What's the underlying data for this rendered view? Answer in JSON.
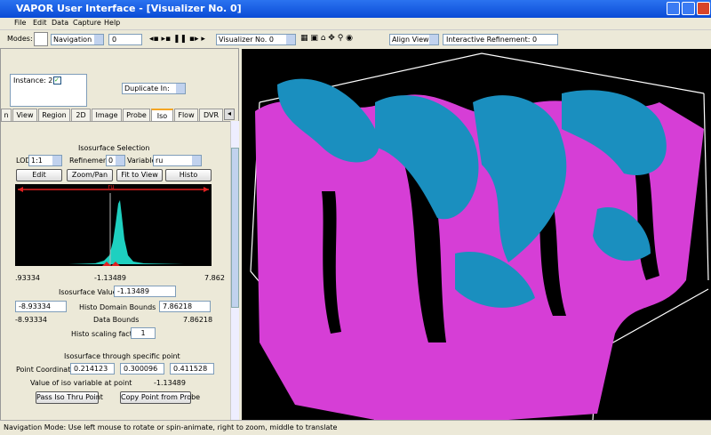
{
  "title_bar": {
    "title": "VAPOR User Interface - [Visualizer No. 0]"
  },
  "menu": [
    "File",
    "Edit",
    "Data",
    "Capture",
    "Help"
  ],
  "toolbar": {
    "modes_label": "Modes:",
    "mode": "Navigation",
    "frame": "0",
    "visualizer": "Visualizer No. 0",
    "align_view": "Align View",
    "refinement": "Interactive Refinement: 0"
  },
  "tabs": [
    "n",
    "View",
    "Region",
    "2D",
    "Image",
    "Probe",
    "Iso",
    "Flow",
    "DVR"
  ],
  "instance": {
    "label": "Instance: 2",
    "duplicate": "Duplicate In:"
  },
  "iso": {
    "heading": "Isosurface Selection",
    "lod_label": "LOD",
    "lod": "1:1",
    "refinement_label": "Refinement",
    "refinement": "0",
    "variable_label": "Variable",
    "variable": "ru",
    "buttons": [
      "Edit",
      "Zoom/Pan",
      "Fit to View",
      "Histo"
    ],
    "histo_label": "ru",
    "histo_axis": [
      ".93334",
      "-1.13489",
      "7.862"
    ],
    "iso_value_label": "Isosurface Value",
    "iso_value": "-1.13489",
    "histo_min": "-8.93334",
    "histo_bounds_label": "Histo Domain Bounds",
    "histo_max": "7.86218",
    "data_min": "-8.93334",
    "data_bounds_label": "Data Bounds",
    "data_max": "7.86218",
    "scaling_label": "Histo scaling factor",
    "scaling": "1",
    "point_heading": "Isosurface through specific point",
    "point_label": "Point Coordinates",
    "point": [
      "0.214123",
      "0.300096",
      "0.411528"
    ],
    "value_at_point_label": "Value of iso variable at point",
    "value_at_point": "-1.13489",
    "pass_button": "Pass Iso Thru Point",
    "copy_button": "Copy Point from Probe"
  },
  "status": "Navigation Mode:  Use left mouse to rotate or spin-animate, right to zoom, middle to translate"
}
